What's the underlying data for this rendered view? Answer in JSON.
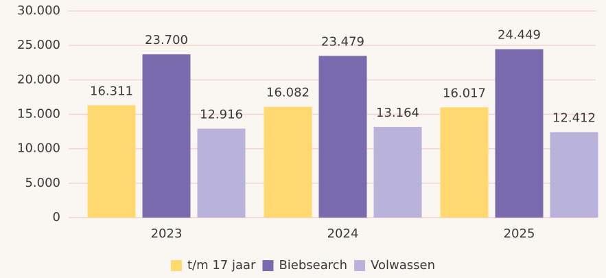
{
  "chart_data": {
    "type": "bar",
    "categories": [
      "2023",
      "2024",
      "2025"
    ],
    "series": [
      {
        "name": "t/m 17 jaar",
        "color": "#ffd970",
        "values": [
          16311,
          16082,
          16017
        ],
        "value_labels": [
          "16.311",
          "16.082",
          "16.017"
        ]
      },
      {
        "name": "Biebsearch",
        "color": "#7a6aae",
        "values": [
          23700,
          23479,
          24449
        ],
        "value_labels": [
          "23.700",
          "23.479",
          "24.449"
        ]
      },
      {
        "name": "Volwassen",
        "color": "#b9b2da",
        "values": [
          12916,
          13164,
          12412
        ],
        "value_labels": [
          "12.916",
          "13.164",
          "12.412"
        ]
      }
    ],
    "ylim": [
      0,
      30000
    ],
    "yticks": [
      0,
      {
        "value": 5000,
        "label": "5.000"
      },
      {
        "value": 10000,
        "label": "10.000"
      },
      {
        "value": 15000,
        "label": "15.000"
      },
      {
        "value": 20000,
        "label": "20.000"
      },
      {
        "value": 25000,
        "label": "25.000"
      },
      {
        "value": 30000,
        "label": "30.000"
      }
    ],
    "grid": true,
    "legend": "bottom"
  }
}
